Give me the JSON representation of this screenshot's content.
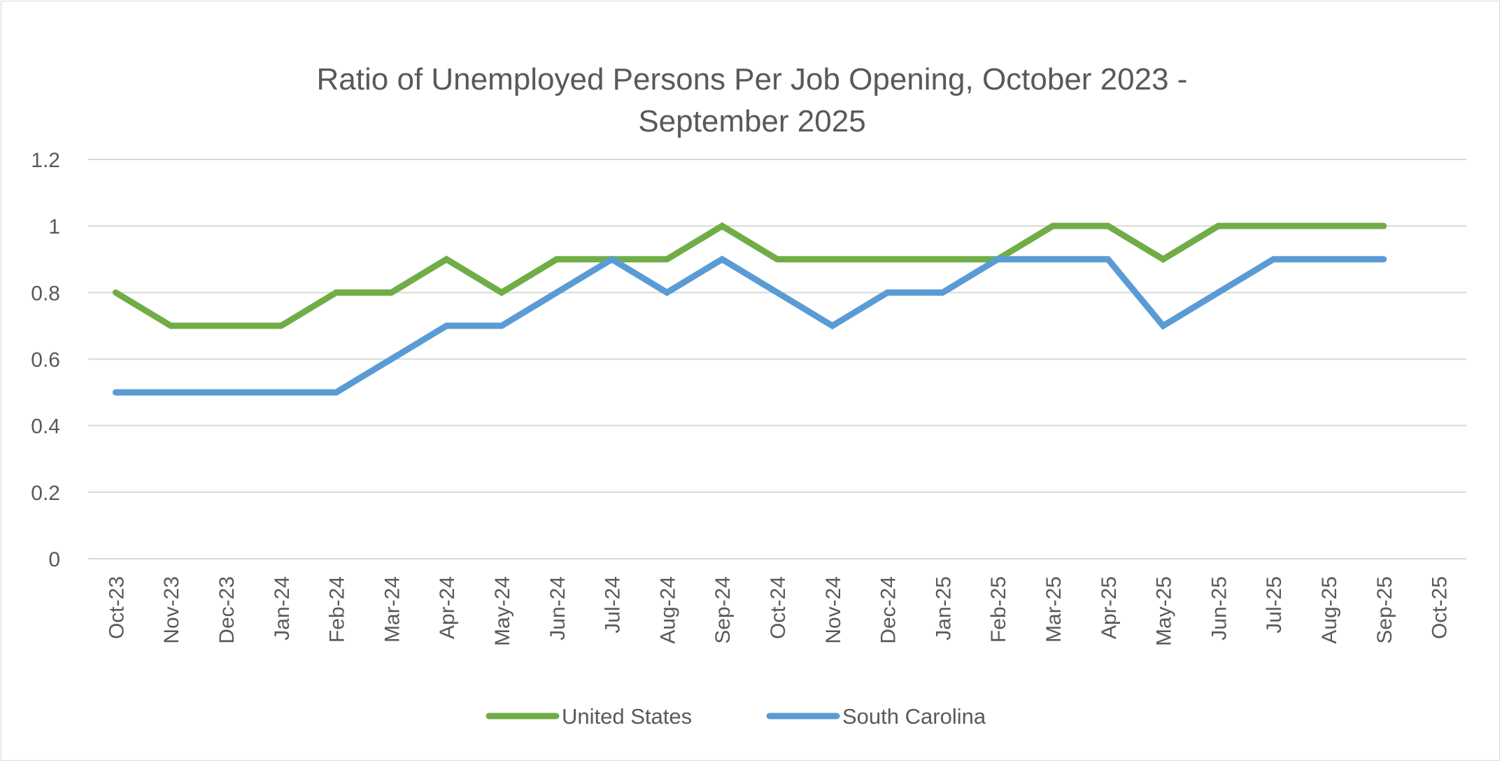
{
  "chart_data": {
    "type": "line",
    "title_lines": [
      "Ratio of Unemployed Persons Per Job Opening, October 2023 -",
      "September 2025"
    ],
    "xlabel": "",
    "ylabel": "",
    "ylim": [
      0,
      1.2
    ],
    "yticks": [
      "0",
      "0.2",
      "0.4",
      "0.6",
      "0.8",
      "1",
      "1.2"
    ],
    "ytick_values": [
      0,
      0.2,
      0.4,
      0.6,
      0.8,
      1,
      1.2
    ],
    "grid": true,
    "legend": "bottom",
    "categories": [
      "Oct-23",
      "Nov-23",
      "Dec-23",
      "Jan-24",
      "Feb-24",
      "Mar-24",
      "Apr-24",
      "May-24",
      "Jun-24",
      "Jul-24",
      "Aug-24",
      "Sep-24",
      "Oct-24",
      "Nov-24",
      "Dec-24",
      "Jan-25",
      "Feb-25",
      "Mar-25",
      "Apr-25",
      "May-25",
      "Jun-25",
      "Jul-25",
      "Aug-25",
      "Sep-25",
      "Oct-25"
    ],
    "series": [
      {
        "name": "United States",
        "color": "#70AD47",
        "values": [
          0.8,
          0.7,
          0.7,
          0.7,
          0.8,
          0.8,
          0.9,
          0.8,
          0.9,
          0.9,
          0.9,
          1.0,
          0.9,
          0.9,
          0.9,
          0.9,
          0.9,
          1.0,
          1.0,
          0.9,
          1.0,
          1.0,
          1.0,
          1.0,
          null
        ]
      },
      {
        "name": "South Carolina",
        "color": "#5B9BD5",
        "values": [
          0.5,
          0.5,
          0.5,
          0.5,
          0.5,
          0.6,
          0.7,
          0.7,
          0.8,
          0.9,
          0.8,
          0.9,
          0.8,
          0.7,
          0.8,
          0.8,
          0.9,
          0.9,
          0.9,
          0.7,
          0.8,
          0.9,
          0.9,
          0.9,
          null
        ]
      }
    ]
  }
}
